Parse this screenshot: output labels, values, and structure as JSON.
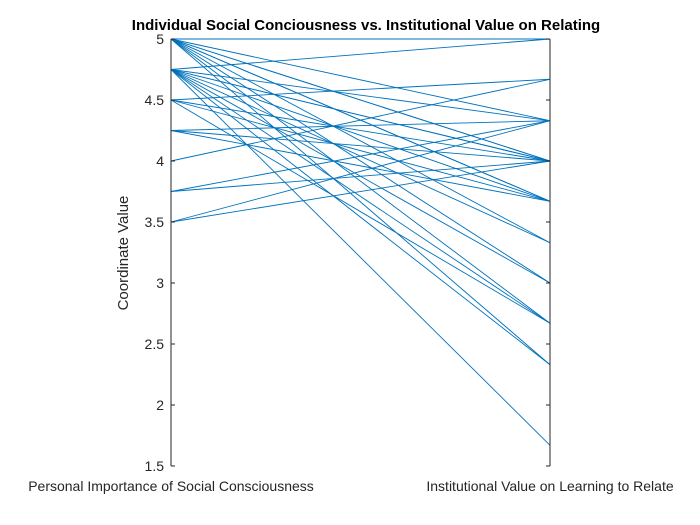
{
  "chart_data": {
    "type": "line",
    "subtype": "parallel-coordinates",
    "title": "Individual Social Conciousness vs. Institutional Value on Relating",
    "ylabel": "Coordinate Value",
    "categories": [
      "Personal Importance of Social Consciousness",
      "Institutional Value on Learning to Relate"
    ],
    "ylim": [
      1.5,
      5
    ],
    "yticks": [
      "1.5",
      "2",
      "2.5",
      "3",
      "3.5",
      "4",
      "4.5",
      "5"
    ],
    "grid": false,
    "line_color": "#0072BD",
    "series": [
      {
        "values": [
          5,
          5
        ]
      },
      {
        "values": [
          5,
          4.33
        ]
      },
      {
        "values": [
          5,
          4
        ]
      },
      {
        "values": [
          5,
          4
        ]
      },
      {
        "values": [
          5,
          3.67
        ]
      },
      {
        "values": [
          5,
          3.67
        ]
      },
      {
        "values": [
          5,
          3.33
        ]
      },
      {
        "values": [
          5,
          3
        ]
      },
      {
        "values": [
          5,
          2.67
        ]
      },
      {
        "values": [
          5,
          2.33
        ]
      },
      {
        "values": [
          4.75,
          5
        ]
      },
      {
        "values": [
          4.75,
          4.33
        ]
      },
      {
        "values": [
          4.75,
          4
        ]
      },
      {
        "values": [
          4.75,
          4
        ]
      },
      {
        "values": [
          4.75,
          3.67
        ]
      },
      {
        "values": [
          4.75,
          3.33
        ]
      },
      {
        "values": [
          4.75,
          3
        ]
      },
      {
        "values": [
          4.75,
          2.67
        ]
      },
      {
        "values": [
          4.75,
          2.33
        ]
      },
      {
        "values": [
          4.75,
          1.67
        ]
      },
      {
        "values": [
          4.5,
          4.67
        ]
      },
      {
        "values": [
          4.5,
          4
        ]
      },
      {
        "values": [
          4.5,
          3.67
        ]
      },
      {
        "values": [
          4.5,
          2.67
        ]
      },
      {
        "values": [
          4.25,
          4.33
        ]
      },
      {
        "values": [
          4.25,
          4
        ]
      },
      {
        "values": [
          4.25,
          3.67
        ]
      },
      {
        "values": [
          4,
          4.67
        ]
      },
      {
        "values": [
          3.75,
          4.33
        ]
      },
      {
        "values": [
          3.75,
          4
        ]
      },
      {
        "values": [
          3.5,
          4.33
        ]
      },
      {
        "values": [
          3.5,
          4
        ]
      }
    ]
  }
}
